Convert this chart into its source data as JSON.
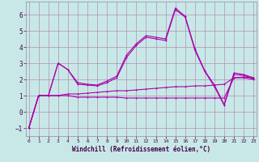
{
  "x": [
    0,
    1,
    2,
    3,
    4,
    5,
    6,
    7,
    8,
    9,
    10,
    11,
    12,
    13,
    14,
    15,
    16,
    17,
    18,
    19,
    20,
    21,
    22,
    23
  ],
  "line1": [
    -1.0,
    1.0,
    1.0,
    1.0,
    1.0,
    0.9,
    0.9,
    0.9,
    0.9,
    0.9,
    0.85,
    0.85,
    0.85,
    0.85,
    0.85,
    0.85,
    0.85,
    0.85,
    0.85,
    0.85,
    0.85,
    2.1,
    2.1,
    2.0
  ],
  "line2": [
    -1.0,
    1.0,
    1.0,
    1.0,
    1.1,
    1.1,
    1.15,
    1.2,
    1.25,
    1.3,
    1.3,
    1.35,
    1.4,
    1.45,
    1.5,
    1.55,
    1.55,
    1.6,
    1.6,
    1.65,
    1.7,
    2.1,
    2.15,
    2.1
  ],
  "line3": [
    -1.0,
    1.0,
    1.0,
    3.0,
    2.6,
    1.7,
    1.65,
    1.6,
    1.8,
    2.1,
    3.35,
    4.1,
    4.6,
    4.5,
    4.4,
    6.3,
    5.85,
    3.8,
    2.5,
    1.55,
    0.4,
    2.3,
    2.25,
    2.05
  ],
  "line4": [
    -1.0,
    1.0,
    1.0,
    3.0,
    2.6,
    1.8,
    1.7,
    1.65,
    1.9,
    2.2,
    3.5,
    4.2,
    4.7,
    4.6,
    4.5,
    6.4,
    5.9,
    3.9,
    2.55,
    1.65,
    0.45,
    2.4,
    2.3,
    2.1
  ],
  "bg_color": "#c8e8e8",
  "grid_color": "#b090b0",
  "line_color": "#aa00aa",
  "xlabel": "Windchill (Refroidissement éolien,°C)",
  "ylim": [
    -1.5,
    6.8
  ],
  "xlim": [
    -0.3,
    23.3
  ],
  "yticks": [
    -1,
    0,
    1,
    2,
    3,
    4,
    5,
    6
  ],
  "xticks": [
    0,
    1,
    2,
    3,
    4,
    5,
    6,
    7,
    8,
    9,
    10,
    11,
    12,
    13,
    14,
    15,
    16,
    17,
    18,
    19,
    20,
    21,
    22,
    23
  ],
  "xlabel_fontsize": 5.5,
  "tick_fontsize_x": 4.5,
  "tick_fontsize_y": 5.5,
  "lw": 0.8,
  "ms": 2.0
}
